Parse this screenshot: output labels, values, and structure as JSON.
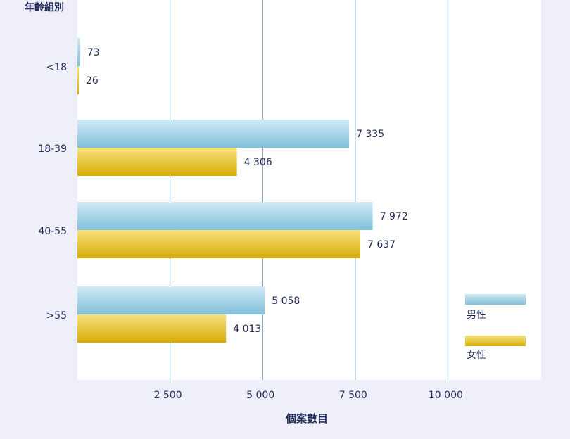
{
  "chart_data": {
    "type": "bar",
    "orientation": "horizontal",
    "ylabel": "年齡組別",
    "xlabel": "個案數目",
    "categories": [
      "<18",
      "18-39",
      "40-55",
      ">55"
    ],
    "series": [
      {
        "name": "男性",
        "values": [
          73,
          7335,
          7972,
          5058
        ],
        "value_labels": [
          "73",
          "7 335",
          "7 972",
          "5 058"
        ],
        "color": "#8fc8e0"
      },
      {
        "name": "女性",
        "values": [
          26,
          4306,
          7637,
          4013
        ],
        "value_labels": [
          "26",
          "4 306",
          "7 637",
          "4 013"
        ],
        "color": "#e3b712"
      }
    ],
    "xlim": [
      0,
      12500
    ],
    "xticks": [
      2500,
      5000,
      7500,
      10000
    ],
    "xtick_labels": [
      "2 500",
      "5 000",
      "7 500",
      "10  000"
    ],
    "grid": true,
    "legend_position": "bottom-right",
    "colors": {
      "background": "#eeeff8",
      "plot_background": "#ffffff",
      "gridline": "#5a87a8",
      "text": "#1f2a56"
    }
  }
}
